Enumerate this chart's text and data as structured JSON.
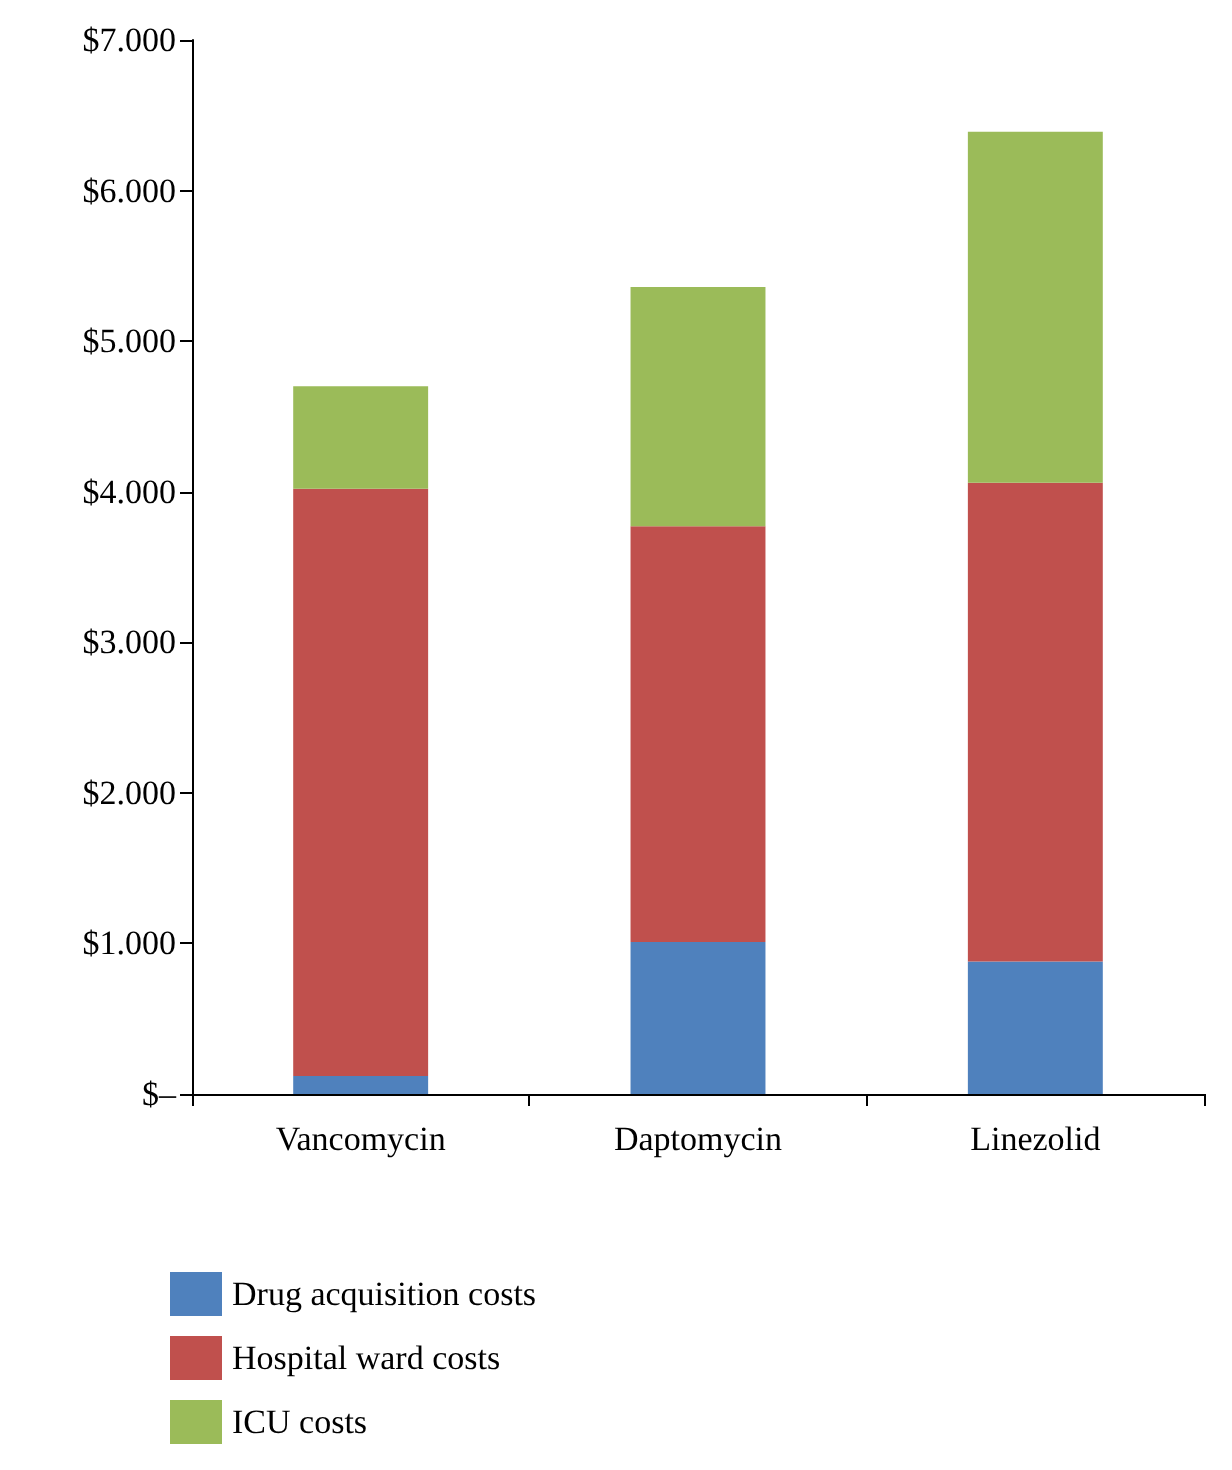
{
  "chart_data": {
    "type": "bar",
    "stacked": true,
    "categories": [
      "Vancomycin",
      "Daptomycin",
      "Linezolid"
    ],
    "series": [
      {
        "name": "Drug acquisition costs",
        "color": "#4f81bd",
        "values": [
          120,
          1010,
          880
        ]
      },
      {
        "name": "Hospital ward costs",
        "color": "#c0504d",
        "values": [
          3900,
          2760,
          3180
        ]
      },
      {
        "name": "ICU costs",
        "color": "#9bbb59",
        "values": [
          680,
          1590,
          2330
        ]
      }
    ],
    "ylim": [
      0,
      7000
    ],
    "yticks": [
      {
        "value": 0,
        "label": "$–"
      },
      {
        "value": 1000,
        "label": "$1.000"
      },
      {
        "value": 2000,
        "label": "$2.000"
      },
      {
        "value": 3000,
        "label": "$3.000"
      },
      {
        "value": 4000,
        "label": "$4.000"
      },
      {
        "value": 5000,
        "label": "$5.000"
      },
      {
        "value": 6000,
        "label": "$6.000"
      },
      {
        "value": 7000,
        "label": "$7.000"
      }
    ],
    "grid": false,
    "legend": "bottom"
  }
}
